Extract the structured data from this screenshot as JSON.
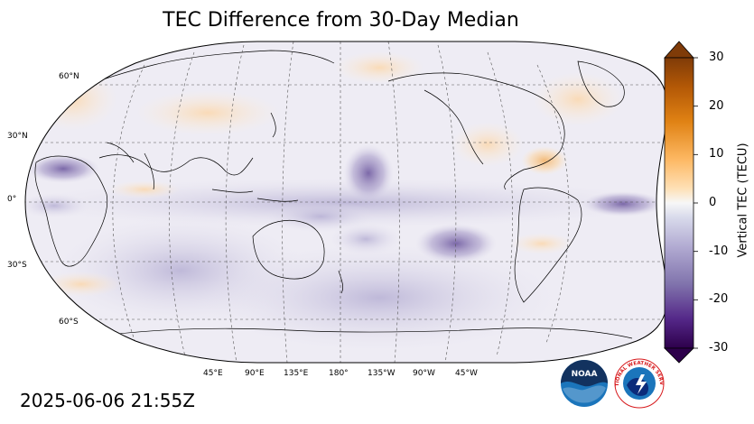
{
  "title": "TEC Difference from 30-Day Median",
  "timestamp": "2025-06-06 21:55Z",
  "map": {
    "projection": "Robinson",
    "central_longitude": 180,
    "lat_labels": [
      "60°N",
      "30°N",
      "0°",
      "30°S",
      "60°S"
    ],
    "lon_labels": [
      "45°E",
      "90°E",
      "135°E",
      "180°",
      "135°W",
      "90°W",
      "45°W"
    ]
  },
  "colorbar": {
    "label": "Vertical TEC (TECU)",
    "ticks": [
      "30",
      "20",
      "10",
      "0",
      "-10",
      "-20",
      "-30"
    ],
    "range": [
      -30,
      30
    ],
    "colormap": "PuOr_r",
    "colors": {
      "high": "#7f3b08",
      "mid": "#f7f7f7",
      "low": "#2d004b"
    }
  },
  "logos": [
    {
      "name": "noaa-logo",
      "text": "NOAA"
    },
    {
      "name": "nws-logo",
      "text": "NATIONAL WEATHER SERVICE"
    }
  ]
}
